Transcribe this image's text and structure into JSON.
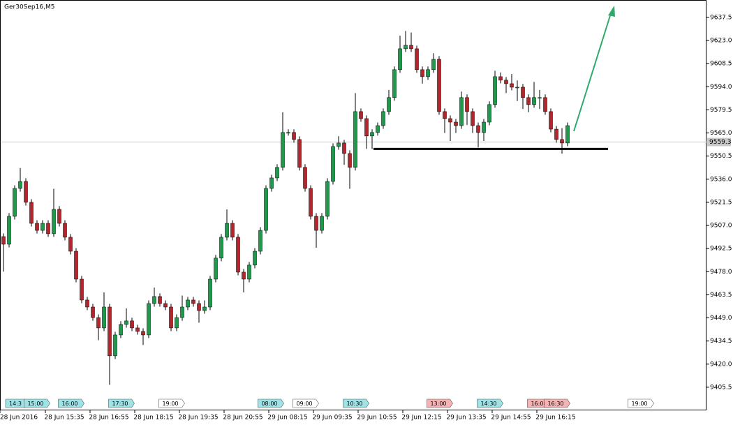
{
  "chart_data": {
    "type": "candlestick",
    "title": "Ger30Sep16,M5",
    "open": [
      9500.0,
      9495.2,
      9512.7,
      9530.2,
      9534.6,
      9521.5,
      9508.3,
      9503.9,
      9508.3,
      9501.8,
      9517.1,
      9508.3,
      9499.6,
      9490.8,
      9473.3,
      9460.2,
      9455.8,
      9449.2,
      9442.7,
      9455.8,
      9425.2,
      9438.3,
      9444.9,
      9447.1,
      9442.7,
      9440.5,
      9438.3,
      9458.0,
      9462.4,
      9458.0,
      9455.8,
      9442.7,
      9449.2,
      9455.8,
      9460.2,
      9458.0,
      9453.6,
      9455.8,
      9473.3,
      9486.5,
      9499.6,
      9508.3,
      9499.6,
      9477.7,
      9473.3,
      9482.1,
      9490.8,
      9503.9,
      9530.2,
      9536.8,
      9543.4,
      9565.3,
      9565.3,
      9560.9,
      9543.4,
      9530.2,
      9512.7,
      9503.9,
      9512.7,
      9534.6,
      9556.5,
      9558.7,
      9552.1,
      9543.4,
      9578.4,
      9574.0,
      9563.1,
      9565.3,
      9569.6,
      9578.4,
      9587.2,
      9604.7,
      9617.8,
      9620.0,
      9617.8,
      9604.7,
      9600.3,
      9604.7,
      9611.2,
      9578.4,
      9574.0,
      9571.8,
      9569.6,
      9587.2,
      9578.4,
      9569.6,
      9565.3,
      9571.8,
      9582.8,
      9600.3,
      9598.1,
      9595.9,
      9593.7,
      9593.7,
      9587.2,
      9582.8,
      9587.2,
      9587.2,
      9578.4,
      9567.4,
      9560.9,
      9558.7
    ],
    "high": [
      9502.0,
      9514.7,
      9532.2,
      9543.0,
      9536.6,
      9523.5,
      9510.3,
      9510.3,
      9510.3,
      9530.0,
      9519.1,
      9510.3,
      9501.6,
      9492.8,
      9475.3,
      9462.2,
      9457.8,
      9451.2,
      9465.0,
      9457.8,
      9440.3,
      9446.9,
      9455.0,
      9449.1,
      9444.7,
      9442.5,
      9460.0,
      9468.0,
      9464.4,
      9460.0,
      9457.8,
      9451.2,
      9463.0,
      9462.2,
      9462.2,
      9460.0,
      9460.0,
      9475.3,
      9488.5,
      9501.6,
      9517.0,
      9510.3,
      9501.6,
      9479.7,
      9484.1,
      9492.8,
      9505.9,
      9532.2,
      9538.8,
      9545.4,
      9578.0,
      9567.3,
      9567.3,
      9562.9,
      9545.4,
      9532.2,
      9514.7,
      9514.7,
      9536.6,
      9558.5,
      9563.0,
      9560.7,
      9554.1,
      9590.0,
      9580.4,
      9576.0,
      9567.3,
      9571.6,
      9580.4,
      9592.0,
      9606.7,
      9626.0,
      9629.0,
      9628.0,
      9619.8,
      9606.7,
      9606.7,
      9615.0,
      9613.2,
      9580.4,
      9576.0,
      9573.8,
      9591.0,
      9589.2,
      9580.4,
      9571.6,
      9573.8,
      9584.8,
      9604.0,
      9603.0,
      9600.1,
      9602.0,
      9598.0,
      9595.7,
      9589.2,
      9597.0,
      9592.0,
      9589.2,
      9580.4,
      9569.4,
      9568.0,
      9571.6
    ],
    "low": [
      9478.0,
      9493.2,
      9510.7,
      9528.2,
      9519.5,
      9506.3,
      9501.9,
      9501.9,
      9499.8,
      9499.8,
      9506.3,
      9497.6,
      9488.8,
      9471.3,
      9458.2,
      9453.8,
      9447.2,
      9435.0,
      9440.7,
      9407.0,
      9423.2,
      9436.3,
      9442.9,
      9440.7,
      9438.5,
      9432.0,
      9436.3,
      9456.0,
      9456.0,
      9453.8,
      9440.7,
      9440.7,
      9447.2,
      9453.8,
      9456.0,
      9446.0,
      9451.6,
      9453.8,
      9471.3,
      9484.5,
      9497.6,
      9497.6,
      9475.7,
      9465.0,
      9471.3,
      9480.1,
      9488.8,
      9501.9,
      9528.2,
      9534.8,
      9541.4,
      9563.3,
      9558.9,
      9541.4,
      9528.2,
      9510.7,
      9493.0,
      9501.9,
      9510.7,
      9532.6,
      9554.5,
      9545.0,
      9530.0,
      9541.4,
      9572.0,
      9555.0,
      9555.0,
      9563.3,
      9567.6,
      9576.4,
      9585.2,
      9602.7,
      9615.8,
      9615.8,
      9602.7,
      9596.0,
      9598.3,
      9602.7,
      9576.4,
      9565.0,
      9560.0,
      9565.0,
      9567.6,
      9570.0,
      9565.0,
      9556.0,
      9560.0,
      9569.8,
      9580.8,
      9596.1,
      9590.0,
      9591.7,
      9585.0,
      9580.0,
      9578.0,
      9580.8,
      9580.0,
      9576.4,
      9565.4,
      9558.9,
      9552.0,
      9556.7
    ],
    "close": [
      9495.2,
      9512.7,
      9530.2,
      9534.6,
      9521.5,
      9508.3,
      9503.9,
      9508.3,
      9501.8,
      9517.1,
      9508.3,
      9499.6,
      9490.8,
      9473.3,
      9460.2,
      9455.8,
      9449.2,
      9442.7,
      9455.8,
      9425.2,
      9438.3,
      9444.9,
      9447.1,
      9442.7,
      9440.5,
      9438.3,
      9458.0,
      9462.4,
      9458.0,
      9455.8,
      9442.7,
      9449.2,
      9455.8,
      9460.2,
      9458.0,
      9453.6,
      9455.8,
      9473.3,
      9486.5,
      9499.6,
      9508.3,
      9499.6,
      9477.7,
      9473.3,
      9482.1,
      9490.8,
      9503.9,
      9530.2,
      9536.8,
      9543.4,
      9565.3,
      9565.3,
      9560.9,
      9543.4,
      9530.2,
      9512.7,
      9503.9,
      9512.7,
      9534.6,
      9556.5,
      9558.7,
      9552.1,
      9543.4,
      9578.4,
      9574.0,
      9563.1,
      9565.3,
      9569.6,
      9578.4,
      9587.2,
      9604.7,
      9617.8,
      9620.0,
      9617.8,
      9604.7,
      9600.3,
      9604.7,
      9611.2,
      9578.4,
      9574.0,
      9571.8,
      9569.6,
      9587.2,
      9578.4,
      9569.6,
      9565.3,
      9571.8,
      9582.8,
      9600.3,
      9598.1,
      9595.9,
      9593.7,
      9593.7,
      9587.2,
      9582.8,
      9587.2,
      9587.2,
      9578.4,
      9567.4,
      9560.9,
      9558.7,
      9569.6
    ],
    "up_color": "#1e9a4c",
    "down_color": "#b3262b",
    "current_price": 9559.3,
    "support_level": 9555,
    "ylim": [
      9391.0,
      9648.4
    ],
    "yticks": [
      9637.5,
      {
        "value": 9623,
        "label": "9623.0"
      },
      9608.5,
      {
        "value": 9594,
        "label": "9594.0"
      },
      9579.5,
      {
        "value": 9565,
        "label": "9565.0"
      },
      9550.5,
      {
        "value": 9536,
        "label": "9536.0"
      },
      9521.5,
      {
        "value": 9507,
        "label": "9507.0"
      },
      9492.5,
      {
        "value": 9478,
        "label": "9478.0"
      },
      9463.5,
      {
        "value": 9449,
        "label": "9449.0"
      },
      9434.5,
      {
        "value": 9420,
        "label": "9420.0"
      },
      9405.5
    ],
    "x_labels": [
      "28 Jun 2016",
      "28 Jun 15:35",
      "28 Jun 16:55",
      "28 Jun 18:15",
      "28 Jun 19:35",
      "28 Jun 20:55",
      "29 Jun 08:15",
      "29 Jun 09:35",
      "29 Jun 10:55",
      "29 Jun 12:15",
      "29 Jun 13:35",
      "29 Jun 14:55",
      "29 Jun 16:15"
    ],
    "events": [
      {
        "label": "14:3",
        "color": "#9fe3e6"
      },
      {
        "label": "15:00",
        "color": "#9fe3e6"
      },
      {
        "label": "16:00",
        "color": "#9fe3e6"
      },
      {
        "label": "17:30",
        "color": "#9fe3e6"
      },
      {
        "label": "19:00",
        "color": "#ffffff"
      },
      {
        "label": "08:00",
        "color": "#9fe3e6"
      },
      {
        "label": "09:00",
        "color": "#ffffff"
      },
      {
        "label": "10:30",
        "color": "#9fe3e6"
      },
      {
        "label": "13:00",
        "color": "#f5b3b3"
      },
      {
        "label": "14:30",
        "color": "#9fe3e6"
      },
      {
        "label": "16:00",
        "color": "#f5b3b3"
      },
      {
        "label": "16:30",
        "color": "#f5b3b3"
      },
      {
        "label": "19:00",
        "color": "#ffffff"
      }
    ]
  }
}
